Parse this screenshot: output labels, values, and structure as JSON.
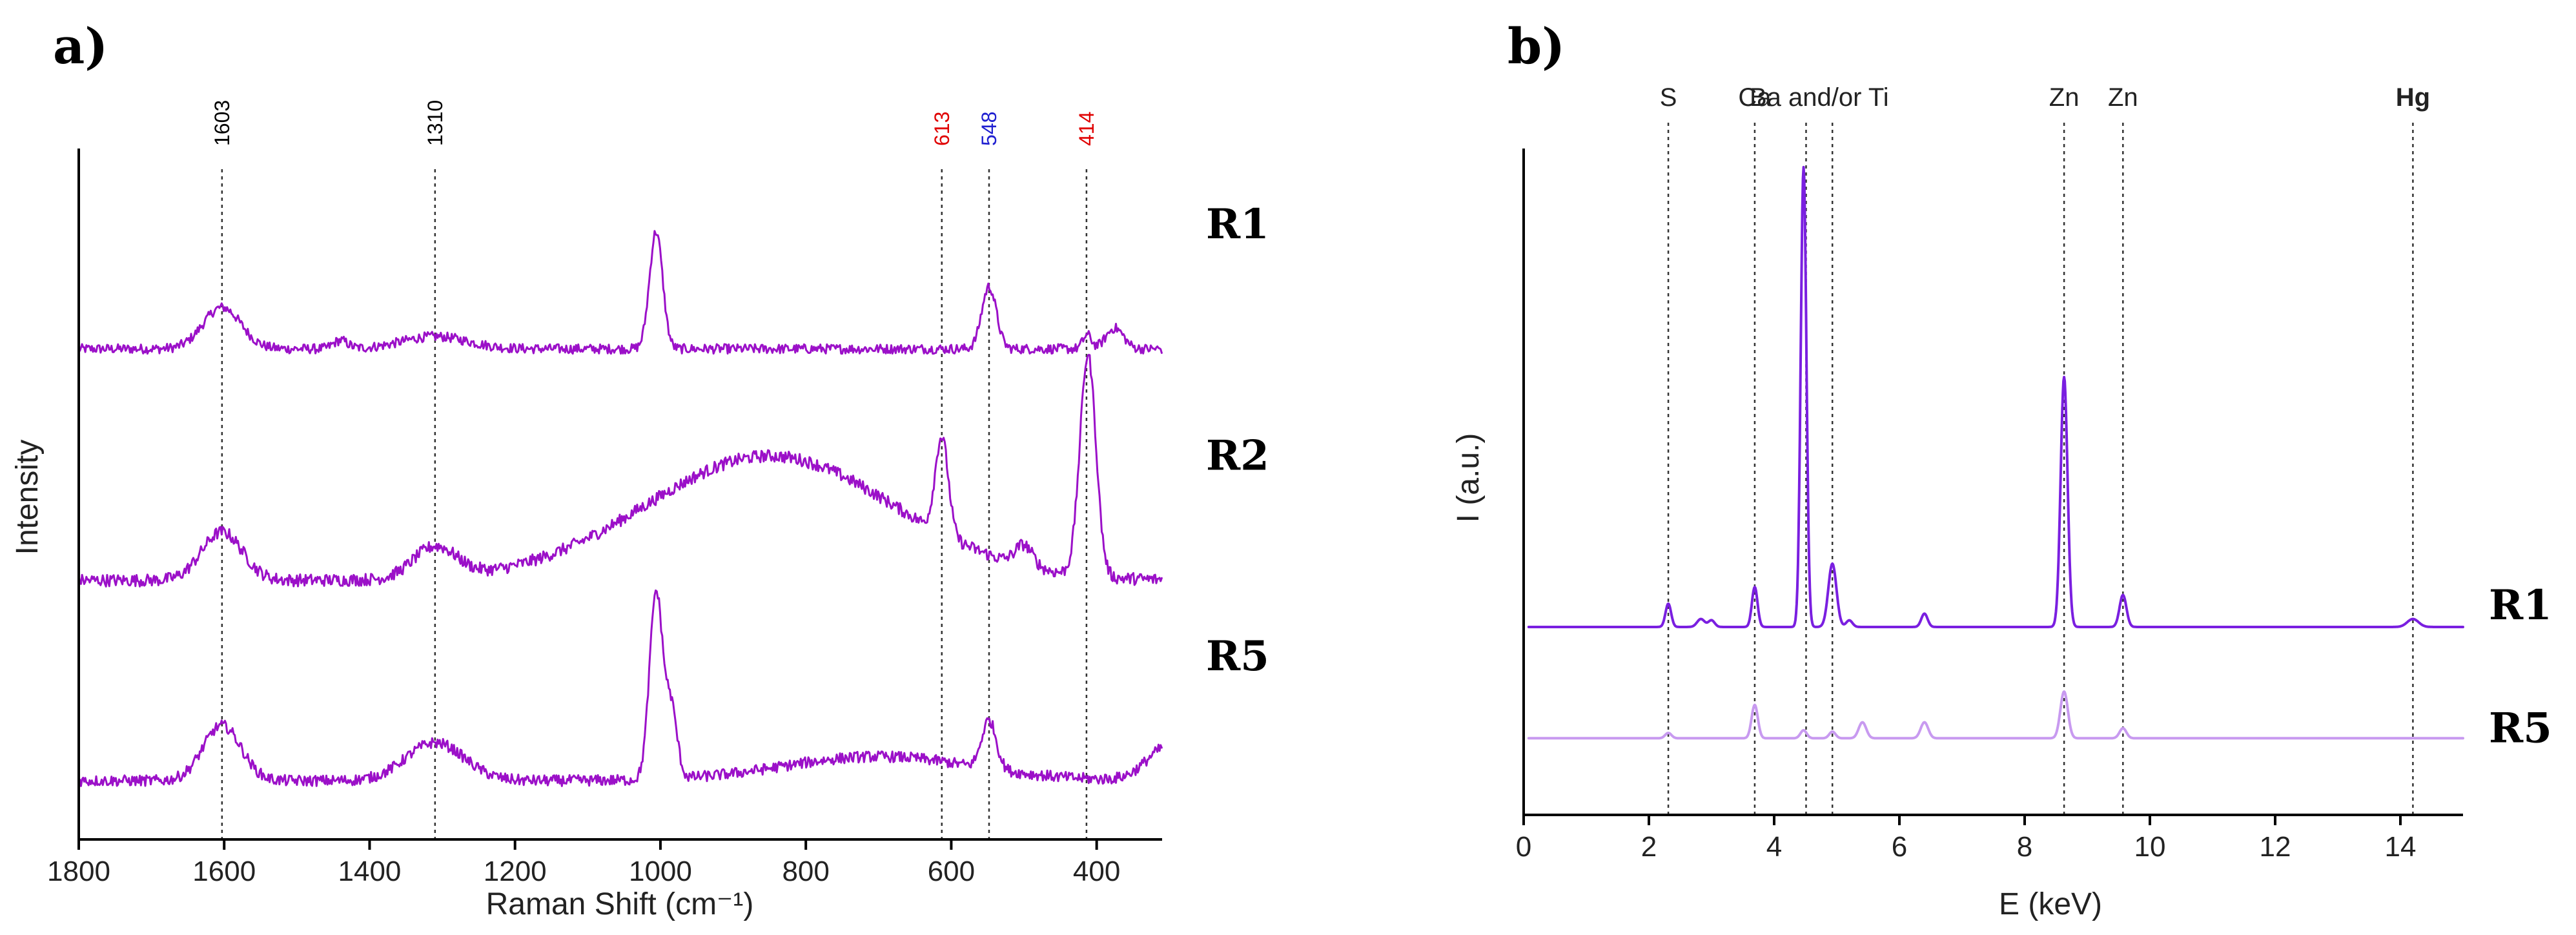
{
  "chart_data": [
    {
      "type": "line",
      "panel_label": "a)",
      "title": "",
      "xlabel": "Raman Shift (cm⁻¹)",
      "ylabel": "Intensity",
      "xlim": [
        1800,
        310
      ],
      "x_reversed": true,
      "ylim": [
        0,
        1
      ],
      "x_ticks": [
        1800,
        1600,
        1400,
        1200,
        1000,
        800,
        600,
        400
      ],
      "y_ticks_shown": false,
      "legend": "right",
      "guide_lines": [
        {
          "x": 1603,
          "label": "1603",
          "color": "#000000"
        },
        {
          "x": 1310,
          "label": "1310",
          "color": "#000000"
        },
        {
          "x": 613,
          "label": "613",
          "color": "#e00000"
        },
        {
          "x": 548,
          "label": "548",
          "color": "#1f1fd0"
        },
        {
          "x": 414,
          "label": "414",
          "color": "#e00000"
        }
      ],
      "series": [
        {
          "name": "R1",
          "color": "#9b10c8",
          "baseline": 0.71,
          "noise": 0.007,
          "peaks": [
            [
              1603,
              0.06,
              26
            ],
            [
              1310,
              0.018,
              45
            ],
            [
              1440,
              0.012,
              10
            ],
            [
              1006,
              0.17,
              9
            ],
            [
              548,
              0.09,
              10
            ],
            [
              413,
              0.02,
              6
            ],
            [
              375,
              0.03,
              12
            ]
          ]
        },
        {
          "name": "R2",
          "color": "#9b10c8",
          "baseline": 0.375,
          "noise": 0.009,
          "peaks": [
            [
              1603,
              0.07,
              28
            ],
            [
              1310,
              0.045,
              30
            ],
            [
              850,
              0.18,
              170
            ],
            [
              613,
              0.14,
              9
            ],
            [
              500,
              0.03,
              12
            ],
            [
              412,
              0.32,
              11
            ]
          ]
        },
        {
          "name": "R5",
          "color": "#9b10c8",
          "baseline": 0.085,
          "noise": 0.008,
          "peaks": [
            [
              1603,
              0.08,
              26
            ],
            [
              1310,
              0.055,
              40
            ],
            [
              1006,
              0.27,
              9
            ],
            [
              985,
              0.1,
              8
            ],
            [
              700,
              0.035,
              130
            ],
            [
              548,
              0.07,
              10
            ],
            [
              300,
              0.05,
              30
            ]
          ]
        }
      ]
    },
    {
      "type": "line",
      "panel_label": "b)",
      "title": "",
      "xlabel": "E (keV)",
      "ylabel": "I (a.u.)",
      "xlim": [
        0,
        15
      ],
      "ylim": [
        0,
        1
      ],
      "x_ticks": [
        0,
        2,
        4,
        6,
        8,
        10,
        12,
        14
      ],
      "y_ticks_shown": false,
      "legend": "right",
      "guide_lines": [
        {
          "x": 2.31,
          "label": "S",
          "bold": false
        },
        {
          "x": 3.69,
          "label": "Ca",
          "bold": false
        },
        {
          "x": 4.51,
          "label": "",
          "bold": false
        },
        {
          "x": 4.93,
          "label": "",
          "bold": false
        },
        {
          "x": 8.63,
          "label": "Zn",
          "bold": false
        },
        {
          "x": 9.57,
          "label": "Zn",
          "bold": false
        },
        {
          "x": 14.2,
          "label": "Hg",
          "bold": true
        }
      ],
      "group_label": {
        "text": "Ba and/or Ti",
        "x": 4.72
      },
      "series": [
        {
          "name": "R1",
          "color": "#7a1fe0",
          "baseline": 0.282,
          "peaks": [
            [
              2.31,
              0.035,
              0.045
            ],
            [
              2.83,
              0.012,
              0.06
            ],
            [
              3.0,
              0.01,
              0.05
            ],
            [
              3.69,
              0.06,
              0.045
            ],
            [
              4.47,
              0.69,
              0.045
            ],
            [
              4.93,
              0.095,
              0.065
            ],
            [
              5.2,
              0.01,
              0.05
            ],
            [
              6.4,
              0.02,
              0.05
            ],
            [
              8.63,
              0.375,
              0.055
            ],
            [
              9.57,
              0.048,
              0.055
            ],
            [
              14.2,
              0.012,
              0.09
            ]
          ]
        },
        {
          "name": "R5",
          "color": "#c89af0",
          "baseline": 0.115,
          "peaks": [
            [
              2.31,
              0.008,
              0.05
            ],
            [
              3.69,
              0.05,
              0.05
            ],
            [
              4.47,
              0.012,
              0.05
            ],
            [
              4.93,
              0.01,
              0.05
            ],
            [
              5.41,
              0.024,
              0.06
            ],
            [
              6.4,
              0.024,
              0.06
            ],
            [
              8.63,
              0.07,
              0.06
            ],
            [
              9.57,
              0.015,
              0.055
            ]
          ]
        }
      ]
    }
  ]
}
